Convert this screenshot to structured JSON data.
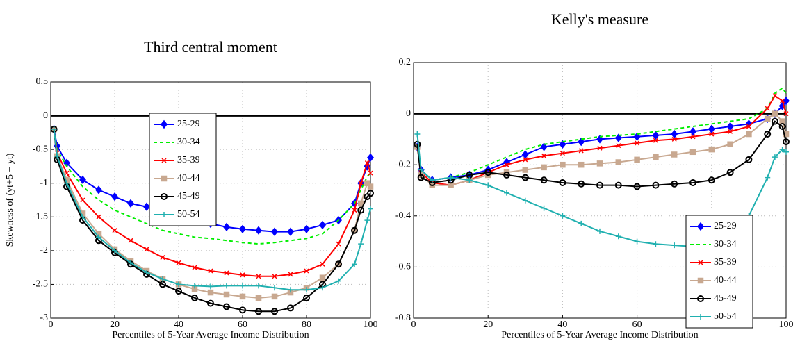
{
  "chart_data": [
    {
      "type": "line",
      "title": "Third central moment",
      "xlabel": "Percentiles of 5-Year Average Income Distribution",
      "ylabel": "Skewness of (yt+5 − yt)",
      "x": [
        1,
        2,
        5,
        10,
        15,
        20,
        25,
        30,
        35,
        40,
        45,
        50,
        55,
        60,
        65,
        70,
        75,
        80,
        85,
        90,
        95,
        97,
        99,
        100
      ],
      "xlim": [
        0,
        100
      ],
      "xticks": [
        0,
        20,
        40,
        60,
        80,
        100
      ],
      "ylim": [
        -3,
        0.5
      ],
      "yticks": [
        -3,
        -2.5,
        -2,
        -1.5,
        -1,
        -0.5,
        0,
        0.5
      ],
      "grid": true,
      "reference_line": 0,
      "legend": "upper center",
      "series": [
        {
          "name": "25-29",
          "color": "#0000ff",
          "marker": "diamond",
          "values": [
            -0.2,
            -0.45,
            -0.7,
            -0.95,
            -1.1,
            -1.2,
            -1.3,
            -1.35,
            -1.45,
            -1.5,
            -1.55,
            -1.6,
            -1.65,
            -1.68,
            -1.7,
            -1.72,
            -1.72,
            -1.68,
            -1.62,
            -1.55,
            -1.3,
            -1.0,
            -0.75,
            -0.62
          ]
        },
        {
          "name": "30-34",
          "color": "#00ee00",
          "marker": "dash",
          "values": [
            -0.2,
            -0.5,
            -0.75,
            -1.05,
            -1.25,
            -1.4,
            -1.5,
            -1.6,
            -1.7,
            -1.75,
            -1.8,
            -1.82,
            -1.85,
            -1.88,
            -1.9,
            -1.88,
            -1.85,
            -1.82,
            -1.75,
            -1.55,
            -1.3,
            -1.1,
            -0.9,
            -0.85
          ]
        },
        {
          "name": "35-39",
          "color": "#ff0000",
          "marker": "x",
          "values": [
            -0.2,
            -0.55,
            -0.85,
            -1.25,
            -1.5,
            -1.7,
            -1.85,
            -1.98,
            -2.1,
            -2.18,
            -2.25,
            -2.3,
            -2.33,
            -2.36,
            -2.38,
            -2.38,
            -2.35,
            -2.3,
            -2.2,
            -1.9,
            -1.4,
            -1.0,
            -0.7,
            -0.85
          ]
        },
        {
          "name": "40-44",
          "color": "#c8a890",
          "marker": "square",
          "values": [
            -0.2,
            -0.6,
            -0.95,
            -1.45,
            -1.75,
            -1.98,
            -2.15,
            -2.3,
            -2.42,
            -2.5,
            -2.57,
            -2.62,
            -2.65,
            -2.68,
            -2.7,
            -2.68,
            -2.62,
            -2.55,
            -2.4,
            -2.2,
            -1.7,
            -1.3,
            -1.0,
            -1.05
          ]
        },
        {
          "name": "45-49",
          "color": "#000000",
          "marker": "circle",
          "values": [
            -0.2,
            -0.65,
            -1.05,
            -1.55,
            -1.85,
            -2.03,
            -2.2,
            -2.35,
            -2.5,
            -2.6,
            -2.7,
            -2.78,
            -2.83,
            -2.88,
            -2.9,
            -2.9,
            -2.85,
            -2.7,
            -2.5,
            -2.2,
            -1.7,
            -1.4,
            -1.2,
            -1.15
          ]
        },
        {
          "name": "50-54",
          "color": "#20b0b0",
          "marker": "plus",
          "values": [
            -0.2,
            -0.6,
            -1.0,
            -1.5,
            -1.8,
            -2.0,
            -2.18,
            -2.32,
            -2.42,
            -2.5,
            -2.52,
            -2.53,
            -2.52,
            -2.52,
            -2.52,
            -2.55,
            -2.58,
            -2.58,
            -2.55,
            -2.45,
            -2.2,
            -1.9,
            -1.55,
            -1.38
          ]
        }
      ]
    },
    {
      "type": "line",
      "title": "Kelly's measure",
      "xlabel": "Percentiles of 5-Year Average Income Distribution",
      "x": [
        1,
        2,
        5,
        10,
        15,
        20,
        25,
        30,
        35,
        40,
        45,
        50,
        55,
        60,
        65,
        70,
        75,
        80,
        85,
        90,
        95,
        97,
        99,
        100
      ],
      "xlim": [
        0,
        100
      ],
      "xticks": [
        0,
        20,
        40,
        60,
        80,
        100
      ],
      "ylim": [
        -0.8,
        0.2
      ],
      "yticks": [
        -0.8,
        -0.6,
        -0.4,
        -0.2,
        0,
        0.2
      ],
      "grid": true,
      "reference_line": 0,
      "legend": "lower right",
      "series": [
        {
          "name": "25-29",
          "color": "#0000ff",
          "marker": "diamond",
          "values": [
            -0.13,
            -0.22,
            -0.26,
            -0.25,
            -0.24,
            -0.22,
            -0.19,
            -0.16,
            -0.13,
            -0.12,
            -0.11,
            -0.1,
            -0.095,
            -0.09,
            -0.085,
            -0.08,
            -0.07,
            -0.06,
            -0.05,
            -0.04,
            -0.02,
            0.0,
            0.03,
            0.05
          ]
        },
        {
          "name": "30-34",
          "color": "#00ee00",
          "marker": "dash",
          "values": [
            -0.13,
            -0.22,
            -0.26,
            -0.25,
            -0.23,
            -0.2,
            -0.17,
            -0.14,
            -0.12,
            -0.11,
            -0.1,
            -0.09,
            -0.085,
            -0.08,
            -0.07,
            -0.06,
            -0.05,
            -0.04,
            -0.03,
            -0.02,
            0.02,
            0.08,
            0.1,
            0.08
          ]
        },
        {
          "name": "35-39",
          "color": "#ff0000",
          "marker": "x",
          "values": [
            -0.13,
            -0.23,
            -0.27,
            -0.28,
            -0.26,
            -0.23,
            -0.2,
            -0.18,
            -0.165,
            -0.155,
            -0.145,
            -0.135,
            -0.125,
            -0.115,
            -0.105,
            -0.1,
            -0.09,
            -0.08,
            -0.07,
            -0.05,
            0.02,
            0.07,
            0.05,
            0.0
          ]
        },
        {
          "name": "40-44",
          "color": "#c8a890",
          "marker": "square",
          "values": [
            -0.13,
            -0.24,
            -0.28,
            -0.28,
            -0.26,
            -0.24,
            -0.23,
            -0.22,
            -0.21,
            -0.2,
            -0.2,
            -0.195,
            -0.19,
            -0.18,
            -0.17,
            -0.16,
            -0.15,
            -0.14,
            -0.12,
            -0.08,
            -0.02,
            0.0,
            -0.03,
            -0.08
          ]
        },
        {
          "name": "45-49",
          "color": "#000000",
          "marker": "circle",
          "values": [
            -0.12,
            -0.25,
            -0.27,
            -0.26,
            -0.24,
            -0.23,
            -0.24,
            -0.25,
            -0.26,
            -0.27,
            -0.275,
            -0.28,
            -0.28,
            -0.285,
            -0.28,
            -0.275,
            -0.27,
            -0.26,
            -0.23,
            -0.18,
            -0.08,
            -0.03,
            -0.05,
            -0.11
          ]
        },
        {
          "name": "50-54",
          "color": "#20b0b0",
          "marker": "plus",
          "values": [
            -0.08,
            -0.22,
            -0.26,
            -0.25,
            -0.26,
            -0.28,
            -0.31,
            -0.34,
            -0.37,
            -0.4,
            -0.43,
            -0.46,
            -0.48,
            -0.5,
            -0.51,
            -0.515,
            -0.52,
            -0.51,
            -0.49,
            -0.4,
            -0.25,
            -0.17,
            -0.14,
            -0.15
          ]
        }
      ]
    }
  ]
}
